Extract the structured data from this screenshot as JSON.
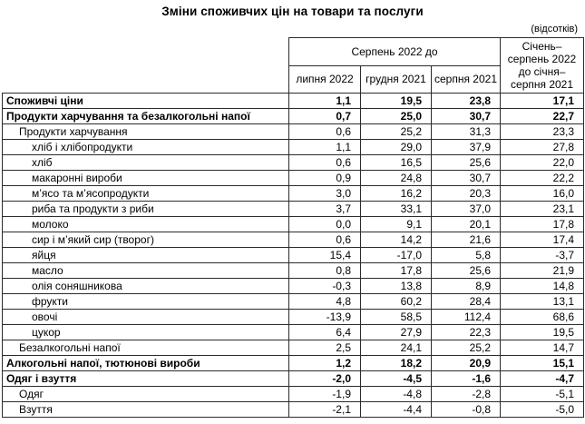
{
  "title": "Зміни споживчих цін на товари та послуги",
  "unit_note": "(відсотків)",
  "chart_data": {
    "type": "table",
    "title": "Зміни споживчих цін на товари та послуги",
    "unit": "відсотків",
    "column_group_header": "Серпень 2022 до",
    "sub_columns": [
      "липня 2022",
      "грудня 2021",
      "серпня 2021"
    ],
    "period_column_header": "Січень–серпень 2022 до січня–серпня 2021",
    "rows": [
      {
        "label": "Споживчі ціни",
        "indent": 0,
        "bold": true,
        "values": [
          "1,1",
          "19,5",
          "23,8",
          "17,1"
        ]
      },
      {
        "label": "Продукти харчування та безалкогольні напої",
        "indent": 0,
        "bold": true,
        "values": [
          "0,7",
          "25,0",
          "30,7",
          "22,7"
        ]
      },
      {
        "label": "Продукти харчування",
        "indent": 1,
        "bold": false,
        "values": [
          "0,6",
          "25,2",
          "31,3",
          "23,3"
        ]
      },
      {
        "label": "хліб і хлібопродукти",
        "indent": 2,
        "bold": false,
        "values": [
          "1,1",
          "29,0",
          "37,9",
          "27,8"
        ]
      },
      {
        "label": "хліб",
        "indent": 2,
        "bold": false,
        "values": [
          "0,6",
          "16,5",
          "25,6",
          "22,0"
        ]
      },
      {
        "label": "макаронні вироби",
        "indent": 2,
        "bold": false,
        "values": [
          "0,9",
          "24,8",
          "30,7",
          "22,2"
        ]
      },
      {
        "label": "м’ясо та м’ясопродукти",
        "indent": 2,
        "bold": false,
        "values": [
          "3,0",
          "16,2",
          "20,3",
          "16,0"
        ]
      },
      {
        "label": "риба та продукти з риби",
        "indent": 2,
        "bold": false,
        "values": [
          "3,7",
          "33,1",
          "37,0",
          "23,1"
        ]
      },
      {
        "label": "молоко",
        "indent": 2,
        "bold": false,
        "values": [
          "0,0",
          "9,1",
          "20,1",
          "17,8"
        ]
      },
      {
        "label": "сир і м’який сир (творог)",
        "indent": 2,
        "bold": false,
        "values": [
          "0,6",
          "14,2",
          "21,6",
          "17,4"
        ]
      },
      {
        "label": "яйця",
        "indent": 2,
        "bold": false,
        "values": [
          "15,4",
          "-17,0",
          "5,8",
          "-3,7"
        ]
      },
      {
        "label": "масло",
        "indent": 2,
        "bold": false,
        "values": [
          "0,8",
          "17,8",
          "25,6",
          "21,9"
        ]
      },
      {
        "label": "олія соняшникова",
        "indent": 2,
        "bold": false,
        "values": [
          "-0,3",
          "13,8",
          "8,9",
          "14,8"
        ]
      },
      {
        "label": "фрукти",
        "indent": 2,
        "bold": false,
        "values": [
          "4,8",
          "60,2",
          "28,4",
          "13,1"
        ]
      },
      {
        "label": "овочі",
        "indent": 2,
        "bold": false,
        "values": [
          "-13,9",
          "58,5",
          "112,4",
          "68,6"
        ]
      },
      {
        "label": "цукор",
        "indent": 2,
        "bold": false,
        "values": [
          "6,4",
          "27,9",
          "22,3",
          "19,5"
        ]
      },
      {
        "label": "Безалкогольні напої",
        "indent": 1,
        "bold": false,
        "values": [
          "2,5",
          "24,1",
          "25,2",
          "14,7"
        ]
      },
      {
        "label": "Алкогольні напої, тютюнові вироби",
        "indent": 0,
        "bold": true,
        "values": [
          "1,2",
          "18,2",
          "20,9",
          "15,1"
        ]
      },
      {
        "label": "Одяг і взуття",
        "indent": 0,
        "bold": true,
        "values": [
          "-2,0",
          "-4,5",
          "-1,6",
          "-4,7"
        ]
      },
      {
        "label": "Одяг",
        "indent": 1,
        "bold": false,
        "values": [
          "-1,9",
          "-4,8",
          "-2,8",
          "-5,1"
        ]
      },
      {
        "label": "Взуття",
        "indent": 1,
        "bold": false,
        "values": [
          "-2,1",
          "-4,4",
          "-0,8",
          "-5,0"
        ]
      }
    ]
  }
}
